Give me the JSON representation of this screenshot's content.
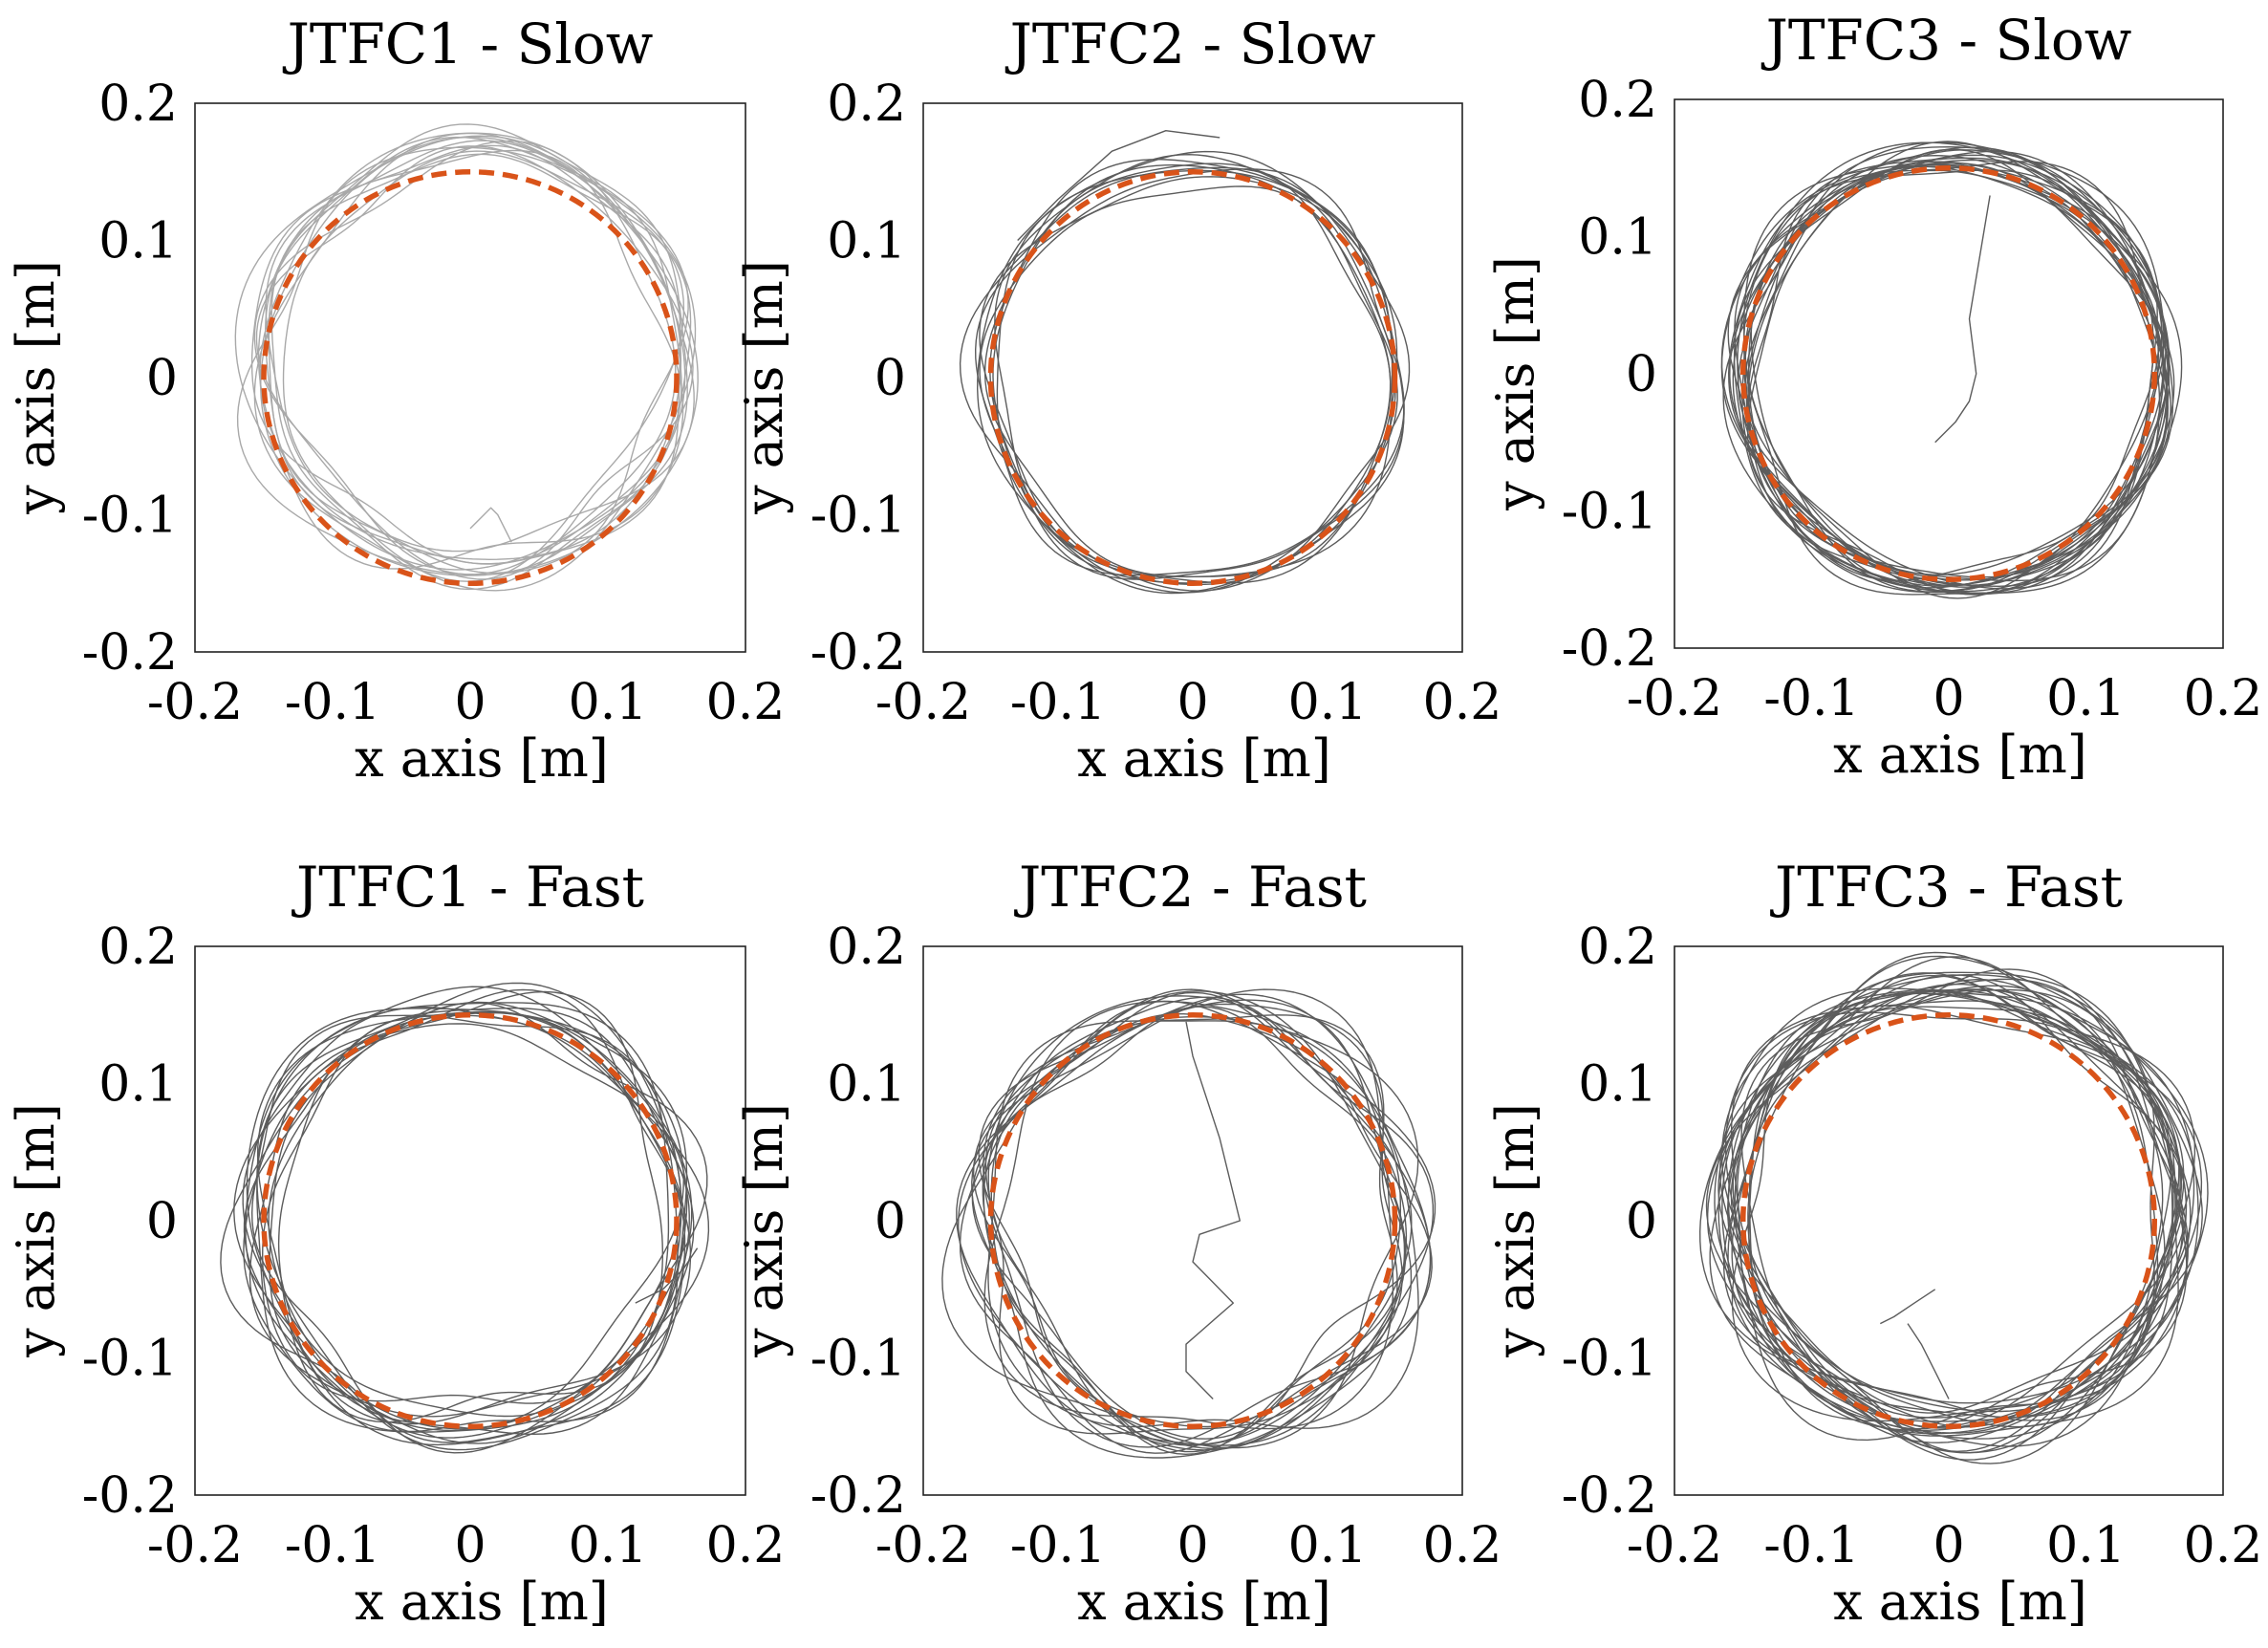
{
  "figure": {
    "colors": {
      "reference": "#D95319",
      "trial_light": "#a9a9a9",
      "trial_dark": "#5c5c5c",
      "frame": "#222222"
    },
    "axis_labels": {
      "x": "x axis [m]",
      "y": "y axis [m]"
    }
  },
  "chart_data": [
    {
      "type": "line",
      "title": "JTFC1 - Slow",
      "xlabel": "x axis [m]",
      "ylabel": "y axis [m]",
      "xlim": [
        -0.2,
        0.2
      ],
      "ylim": [
        -0.2,
        0.2
      ],
      "xticks": [
        "-0.2",
        "-0.1",
        "0",
        "0.1",
        "0.2"
      ],
      "yticks": [
        "-0.2",
        "-0.1",
        "0",
        "0.1",
        "0.2"
      ],
      "reference": {
        "name": "desired circle",
        "center": [
          0,
          0
        ],
        "radius": 0.15
      },
      "trials": {
        "name": "measured trajectories",
        "count": 14,
        "center": [
          0,
          0.015
        ],
        "mean_radius": 0.152,
        "spread": 0.018,
        "shade": "light"
      },
      "extra_paths": [
        {
          "name": "start segment",
          "x": [
            0.0,
            0.01,
            0.015,
            0.02,
            0.03
          ],
          "y": [
            -0.11,
            -0.1,
            -0.095,
            -0.1,
            -0.12
          ]
        }
      ]
    },
    {
      "type": "line",
      "title": "JTFC2 - Slow",
      "xlabel": "x axis [m]",
      "ylabel": "y axis [m]",
      "xlim": [
        -0.2,
        0.2
      ],
      "ylim": [
        -0.2,
        0.2
      ],
      "xticks": [
        "-0.2",
        "-0.1",
        "0",
        "0.1",
        "0.2"
      ],
      "yticks": [
        "-0.2",
        "-0.1",
        "0",
        "0.1",
        "0.2"
      ],
      "reference": {
        "name": "desired circle",
        "center": [
          0,
          0
        ],
        "radius": 0.15
      },
      "trials": {
        "name": "measured trajectories",
        "count": 10,
        "center": [
          0,
          0
        ],
        "mean_radius": 0.152,
        "spread": 0.012,
        "shade": "dark"
      },
      "extra_paths": [
        {
          "name": "start segment",
          "x": [
            -0.13,
            -0.1,
            -0.06,
            -0.02,
            0.02
          ],
          "y": [
            0.1,
            0.13,
            0.165,
            0.18,
            0.175
          ]
        }
      ]
    },
    {
      "type": "line",
      "title": "JTFC3 - Slow",
      "xlabel": "x axis [m]",
      "ylabel": "y axis [m]",
      "xlim": [
        -0.2,
        0.2
      ],
      "ylim": [
        -0.2,
        0.2
      ],
      "xticks": [
        "-0.2",
        "-0.1",
        "0",
        "0.1",
        "0.2"
      ],
      "yticks": [
        "-0.2",
        "-0.1",
        "0",
        "0.1",
        "0.2"
      ],
      "reference": {
        "name": "desired circle",
        "center": [
          0,
          0
        ],
        "radius": 0.15
      },
      "trials": {
        "name": "measured trajectories",
        "count": 22,
        "center": [
          0.002,
          0.002
        ],
        "mean_radius": 0.155,
        "spread": 0.014,
        "shade": "dark"
      },
      "extra_paths": [
        {
          "name": "start segment",
          "x": [
            0.03,
            0.025,
            0.02,
            0.015,
            0.02,
            0.015,
            0.005,
            -0.01
          ],
          "y": [
            0.13,
            0.1,
            0.07,
            0.04,
            0.0,
            -0.02,
            -0.035,
            -0.05
          ]
        }
      ]
    },
    {
      "type": "line",
      "title": "JTFC1 - Fast",
      "xlabel": "x axis [m]",
      "ylabel": "y axis [m]",
      "xlim": [
        -0.2,
        0.2
      ],
      "ylim": [
        -0.2,
        0.2
      ],
      "xticks": [
        "-0.2",
        "-0.1",
        "0",
        "0.1",
        "0.2"
      ],
      "yticks": [
        "-0.2",
        "-0.1",
        "0",
        "0.1",
        "0.2"
      ],
      "reference": {
        "name": "desired circle",
        "center": [
          0,
          0
        ],
        "radius": 0.15
      },
      "trials": {
        "name": "measured trajectories",
        "count": 16,
        "center": [
          0.0,
          0.0
        ],
        "mean_radius": 0.155,
        "spread": 0.018,
        "shade": "dark"
      },
      "extra_paths": [
        {
          "name": "start segment",
          "x": [
            0.12,
            0.14,
            0.155,
            0.165
          ],
          "y": [
            -0.06,
            -0.05,
            -0.035,
            -0.02
          ]
        }
      ]
    },
    {
      "type": "line",
      "title": "JTFC2 - Fast",
      "xlabel": "x axis [m]",
      "ylabel": "y axis [m]",
      "xlim": [
        -0.2,
        0.2
      ],
      "ylim": [
        -0.2,
        0.2
      ],
      "xticks": [
        "-0.2",
        "-0.1",
        "0",
        "0.1",
        "0.2"
      ],
      "yticks": [
        "-0.2",
        "-0.1",
        "0",
        "0.1",
        "0.2"
      ],
      "reference": {
        "name": "desired circle",
        "center": [
          0,
          0
        ],
        "radius": 0.15
      },
      "trials": {
        "name": "measured trajectories",
        "count": 16,
        "center": [
          0.0,
          0.0
        ],
        "mean_radius": 0.155,
        "spread": 0.02,
        "shade": "dark"
      },
      "extra_paths": [
        {
          "name": "start segment",
          "x": [
            -0.005,
            0.0,
            0.02,
            0.035,
            0.005,
            0.0,
            0.03,
            -0.005,
            -0.005,
            0.015
          ],
          "y": [
            0.145,
            0.12,
            0.06,
            0.0,
            -0.01,
            -0.03,
            -0.06,
            -0.09,
            -0.11,
            -0.13
          ]
        }
      ]
    },
    {
      "type": "line",
      "title": "JTFC3 - Fast",
      "xlabel": "x axis [m]",
      "ylabel": "y axis [m]",
      "xlim": [
        -0.2,
        0.2
      ],
      "ylim": [
        -0.2,
        0.2
      ],
      "xticks": [
        "-0.2",
        "-0.1",
        "0",
        "0.1",
        "0.2"
      ],
      "yticks": [
        "-0.2",
        "-0.1",
        "0",
        "0.1",
        "0.2"
      ],
      "reference": {
        "name": "desired circle",
        "center": [
          0,
          0
        ],
        "radius": 0.15
      },
      "trials": {
        "name": "measured trajectories",
        "count": 26,
        "center": [
          0.005,
          0.01
        ],
        "mean_radius": 0.163,
        "spread": 0.02,
        "shade": "dark"
      },
      "extra_paths": [
        {
          "name": "start segment",
          "x": [
            -0.01,
            -0.025,
            -0.04,
            -0.05
          ],
          "y": [
            -0.05,
            -0.06,
            -0.07,
            -0.075
          ]
        },
        {
          "name": "start segment 2",
          "x": [
            -0.03,
            -0.02,
            -0.01,
            0.0
          ],
          "y": [
            -0.075,
            -0.09,
            -0.11,
            -0.13
          ]
        }
      ]
    }
  ]
}
